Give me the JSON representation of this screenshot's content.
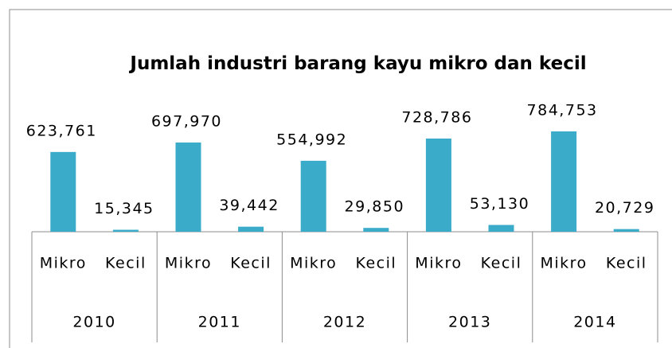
{
  "chart_data": {
    "type": "bar",
    "title": "Jumlah industri barang kayu mikro dan kecil",
    "categories": [
      "Mikro",
      "Kecil",
      "Mikro",
      "Kecil",
      "Mikro",
      "Kecil",
      "Mikro",
      "Kecil",
      "Mikro",
      "Kecil"
    ],
    "groups": [
      "2010",
      "2011",
      "2012",
      "2013",
      "2014"
    ],
    "values": [
      623761,
      15345,
      697970,
      39442,
      554992,
      29850,
      728786,
      53130,
      784753,
      20729
    ],
    "value_labels": [
      "623,761",
      "15,345",
      "697,970",
      "39,442",
      "554,992",
      "29,850",
      "728,786",
      "53,130",
      "784,753",
      "20,729"
    ],
    "color": "#3aabc8"
  }
}
